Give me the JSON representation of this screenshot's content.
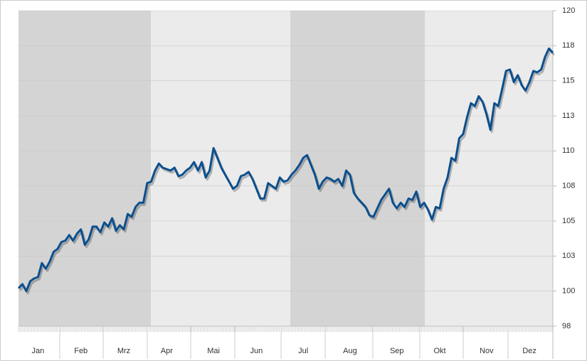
{
  "chart_data": {
    "type": "line",
    "categories": [
      null,
      null,
      null,
      null,
      null,
      "Jan",
      null,
      null,
      null,
      null,
      null,
      null,
      null,
      null,
      null,
      null,
      "Feb",
      null,
      null,
      null,
      null,
      null,
      null,
      null,
      null,
      null,
      null,
      "Mrz",
      null,
      null,
      null,
      null,
      null,
      null,
      null,
      null,
      null,
      null,
      "Apr",
      null,
      null,
      null,
      null,
      null,
      null,
      null,
      null,
      null,
      null,
      null,
      "Mai",
      null,
      null,
      null,
      null,
      null,
      null,
      null,
      null,
      null,
      null,
      "Jun",
      null,
      null,
      null,
      null,
      null,
      null,
      null,
      null,
      null,
      null,
      null,
      "Jul",
      null,
      null,
      null,
      null,
      null,
      null,
      null,
      null,
      null,
      null,
      null,
      "Aug",
      null,
      null,
      null,
      null,
      null,
      null,
      null,
      null,
      null,
      null,
      null,
      "Sep",
      null,
      null,
      null,
      null,
      null,
      null,
      null,
      null,
      null,
      null,
      "Okt",
      null,
      null,
      null,
      null,
      null,
      null,
      null,
      null,
      null,
      null,
      null,
      "Nov",
      null,
      null,
      null,
      null,
      null,
      null,
      null,
      null,
      null,
      null,
      "Dez",
      null,
      null,
      null,
      null,
      null,
      null
    ],
    "series": [
      {
        "color": "#0b4f8e",
        "values": [
          100.2,
          100.5,
          100,
          100.7,
          100.9,
          101,
          102,
          101.6,
          102.1,
          102.8,
          103,
          103.5,
          103.6,
          104,
          103.6,
          104.1,
          104.4,
          103.3,
          103.7,
          104.6,
          104.6,
          104.2,
          104.9,
          104.6,
          105.2,
          104.3,
          104.7,
          104.4,
          105.5,
          105.3,
          106,
          106.3,
          106.3,
          107.7,
          107.8,
          108.6,
          109.1,
          108.8,
          108.7,
          108.6,
          108.8,
          108.2,
          108.3,
          108.6,
          108.8,
          109.2,
          108.6,
          109.2,
          108.1,
          108.6,
          110.2,
          109.5,
          108.8,
          108.3,
          107.8,
          107.3,
          107.5,
          108.2,
          108.3,
          108.5,
          108,
          107.3,
          106.6,
          106.6,
          107.7,
          107.5,
          107.3,
          108.1,
          107.8,
          107.9,
          108.3,
          108.6,
          109,
          109.5,
          109.7,
          109,
          108.3,
          107.3,
          107.8,
          108.1,
          108,
          107.8,
          108,
          107.5,
          108.6,
          108.3,
          107,
          106.6,
          106.3,
          106,
          105.4,
          105.3,
          105.9,
          106.5,
          106.9,
          107.3,
          106.3,
          105.9,
          106.3,
          106,
          106.6,
          106.5,
          107.1,
          106,
          106.3,
          105.8,
          105.1,
          106,
          105.9,
          107.3,
          108.1,
          109.5,
          109.3,
          110.9,
          111.2,
          112.4,
          113.4,
          113.2,
          113.9,
          113.5,
          112.6,
          111.5,
          113.4,
          113.2,
          114.4,
          115.7,
          115.8,
          114.9,
          115.4,
          114.7,
          114.3,
          114.9,
          115.7,
          115.6,
          115.8,
          116.7,
          117.3,
          117
        ]
      }
    ],
    "ylim": [
      97.5,
      120
    ],
    "yticks": [
      {
        "value": 97.5,
        "label": "98"
      },
      100,
      {
        "value": 102.5,
        "label": "103"
      },
      105,
      {
        "value": 107.5,
        "label": "108"
      },
      110,
      {
        "value": 112.5,
        "label": "113"
      },
      115,
      {
        "value": 117.5,
        "label": "118"
      },
      120
    ],
    "grid": true
  }
}
